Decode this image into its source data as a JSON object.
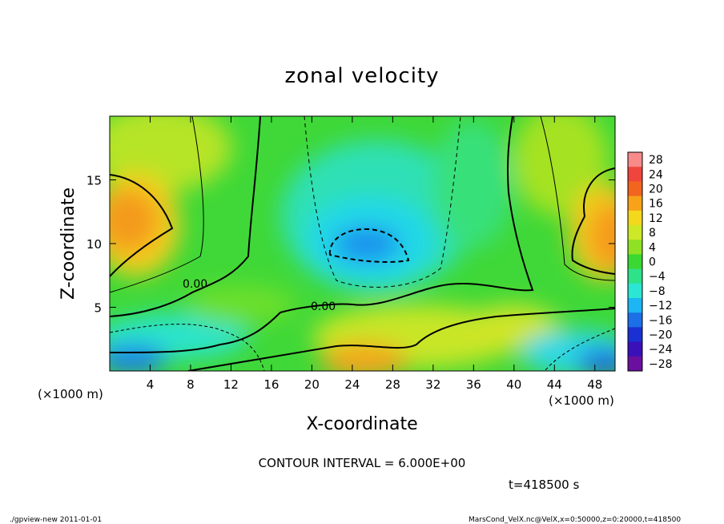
{
  "chart_data": {
    "type": "heatmap",
    "title": "zonal velocity",
    "xlabel": "X-coordinate",
    "ylabel": "Z-coordinate",
    "x_unit_left": "(×1000 m)",
    "x_unit_right": "(×1000 m)",
    "xlim": [
      0,
      50
    ],
    "ylim": [
      0,
      20
    ],
    "x_ticks": [
      4,
      8,
      12,
      16,
      20,
      24,
      28,
      32,
      36,
      40,
      44,
      48
    ],
    "y_ticks": [
      5,
      10,
      15
    ],
    "colorbar": {
      "labels": [
        "28",
        "24",
        "20",
        "16",
        "12",
        "8",
        "4",
        "0",
        "−4",
        "−8",
        "−12",
        "−16",
        "−20",
        "−24",
        "−28"
      ],
      "levels": [
        28,
        24,
        20,
        16,
        12,
        8,
        4,
        0,
        -4,
        -8,
        -12,
        -16,
        -20,
        -24,
        -28
      ],
      "colors": [
        "#f88a8a",
        "#f0453c",
        "#f2651e",
        "#f7a218",
        "#f4d81c",
        "#cde826",
        "#8fe223",
        "#3ad832",
        "#2ee28a",
        "#2be6d2",
        "#1bb6f3",
        "#1c6fe6",
        "#1a30d2",
        "#3a10b8",
        "#6a0f9e"
      ]
    },
    "contour_labels": [
      "0.00",
      "0.00"
    ],
    "contour_interval_text": "CONTOUR INTERVAL = 6.000E+00",
    "time_text": "t=418500 s"
  },
  "footer": {
    "left": "./gpview-new  2011-01-01",
    "right": "MarsCond_VelX.nc@VelX,x=0:50000,z=0:20000,t=418500"
  }
}
